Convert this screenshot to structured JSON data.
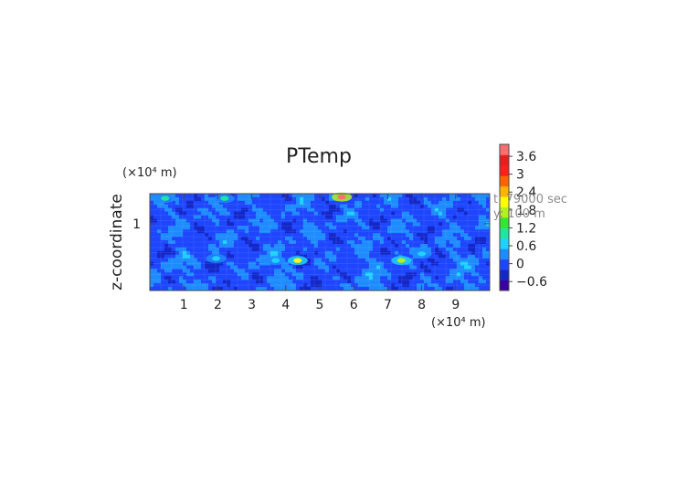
{
  "chart_data": {
    "type": "heatmap",
    "title": "PTemp",
    "xlabel": "",
    "ylabel": "z-coordinate",
    "x_unit": "(×10⁴ m)",
    "y_unit": "(×10⁴ m)",
    "xlim": [
      0,
      10
    ],
    "ylim": [
      0,
      1.45
    ],
    "x_ticks": [
      1,
      2,
      3,
      4,
      5,
      6,
      7,
      8,
      9
    ],
    "x_tick_labels": [
      "1",
      "2",
      "3",
      "4",
      "5",
      "6",
      "7",
      "8",
      "9"
    ],
    "y_ticks": [
      1
    ],
    "y_tick_labels": [
      "1"
    ],
    "annotations": {
      "time": "t: 79000 sec",
      "slice": "y: 100 m"
    },
    "colorbar": {
      "range": [
        -0.9,
        4.0
      ],
      "tick_values": [
        3.6,
        3.0,
        2.4,
        1.8,
        1.2,
        0.6,
        0,
        -0.6
      ],
      "tick_labels": [
        "3.6",
        "3",
        "2.4",
        "1.8",
        "1.2",
        "0.6",
        "0",
        "−0.6"
      ],
      "colors": [
        "#3a00a0",
        "#1428c8",
        "#1e46ff",
        "#1e8cff",
        "#1ed2ff",
        "#1ee6a0",
        "#32e632",
        "#b4f01e",
        "#ffff00",
        "#ffb400",
        "#ff6400",
        "#ff1e1e",
        "#e61e1e",
        "#ff6e6e"
      ]
    },
    "features": [
      {
        "x": 0.45,
        "z": 1.38,
        "value": 1.1
      },
      {
        "x": 2.2,
        "z": 1.38,
        "value": 0.9
      },
      {
        "x": 5.65,
        "z": 1.4,
        "value": 4.0
      },
      {
        "x": 4.35,
        "z": 0.45,
        "value": 1.9
      },
      {
        "x": 1.95,
        "z": 0.48,
        "value": 0.8
      },
      {
        "x": 7.4,
        "z": 0.45,
        "value": 1.6
      },
      {
        "x": 3.7,
        "z": 0.45,
        "value": 0.6
      },
      {
        "x": 8.0,
        "z": 0.55,
        "value": 0.5
      }
    ]
  }
}
